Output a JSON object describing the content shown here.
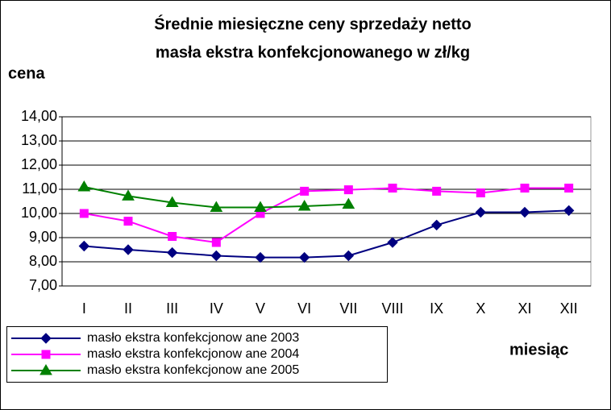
{
  "chart_data": {
    "type": "line",
    "title": [
      "Średnie miesięczne ceny sprzedaży netto",
      "masła ekstra konfekcjonowanego w zł/kg"
    ],
    "y_label": "cena",
    "x_label": "miesiąc",
    "categories": [
      "I",
      "II",
      "III",
      "IV",
      "V",
      "VI",
      "VII",
      "VIII",
      "IX",
      "X",
      "XI",
      "XII"
    ],
    "series": [
      {
        "name": "masło ekstra konfekcjonow ane 2003",
        "color": "#000080",
        "marker": "diamond",
        "values": [
          8.65,
          8.5,
          8.38,
          8.25,
          8.18,
          8.18,
          8.25,
          8.8,
          9.52,
          10.05,
          10.05,
          10.12
        ]
      },
      {
        "name": "masło ekstra konfekcjonow ane 2004",
        "color": "#ff00ff",
        "marker": "square",
        "values": [
          10.0,
          9.68,
          9.05,
          8.8,
          10.0,
          10.92,
          10.98,
          11.05,
          10.92,
          10.85,
          11.05,
          11.05
        ]
      },
      {
        "name": "masło ekstra konfekcjonow ane 2005",
        "color": "#008000",
        "marker": "triangle",
        "values": [
          11.1,
          10.72,
          10.45,
          10.25,
          10.25,
          10.3,
          10.38,
          null,
          null,
          null,
          null,
          null
        ]
      }
    ],
    "ylim": [
      7,
      14
    ],
    "yticks": [
      {
        "value": 7,
        "label": "7,00"
      },
      {
        "value": 8,
        "label": "8,00"
      },
      {
        "value": 9,
        "label": "9,00"
      },
      {
        "value": 10,
        "label": "10,00"
      },
      {
        "value": 11,
        "label": "11,00"
      },
      {
        "value": 12,
        "label": "12,00"
      },
      {
        "value": 13,
        "label": "13,00"
      },
      {
        "value": 14,
        "label": "14,00"
      }
    ],
    "grid": true,
    "legend": "bottom-left"
  }
}
